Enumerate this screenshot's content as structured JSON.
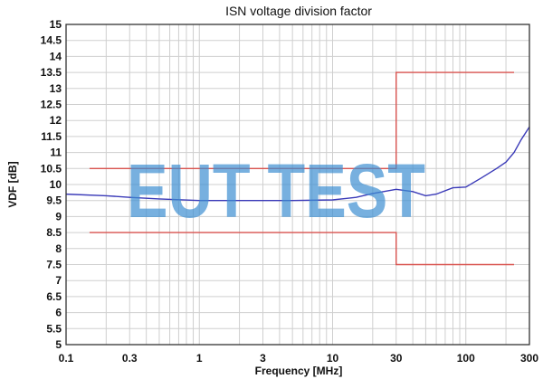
{
  "chart_data": {
    "type": "line",
    "title": "ISN voltage division factor",
    "xlabel": "Frequency [MHz]",
    "ylabel": "VDF [dB]",
    "xscale": "log",
    "xlim": [
      0.1,
      300
    ],
    "ylim": [
      5,
      15
    ],
    "grid": true,
    "xticks": [
      0.1,
      0.3,
      1,
      3,
      10,
      30,
      100,
      300
    ],
    "xtick_labels": [
      "0.1",
      "0.3",
      "1",
      "3",
      "10",
      "30",
      "100",
      "300"
    ],
    "yticks": [
      5,
      5.5,
      6,
      6.5,
      7,
      7.5,
      8,
      8.5,
      9,
      9.5,
      10,
      10.5,
      11,
      11.5,
      12,
      12.5,
      13,
      13.5,
      14,
      14.5,
      15
    ],
    "ytick_labels": [
      "5",
      "5.5",
      "6",
      "6.5",
      "7",
      "7.5",
      "8",
      "8.5",
      "9",
      "9.5",
      "10",
      "10.5",
      "11",
      "11.5",
      "12",
      "12.5",
      "13",
      "13.5",
      "14",
      "14.5",
      "15"
    ],
    "series": [
      {
        "role": "measured",
        "color": "#3a3ab8",
        "x": [
          0.1,
          0.2,
          0.3,
          0.5,
          1,
          2,
          5,
          10,
          15,
          20,
          30,
          40,
          50,
          60,
          80,
          100,
          130,
          170,
          200,
          230,
          260,
          300
        ],
        "y": [
          9.7,
          9.65,
          9.6,
          9.55,
          9.5,
          9.5,
          9.5,
          9.52,
          9.6,
          9.72,
          9.85,
          9.78,
          9.65,
          9.7,
          9.9,
          9.92,
          10.2,
          10.5,
          10.7,
          11.0,
          11.4,
          11.8
        ]
      },
      {
        "role": "upper-limit",
        "color": "#d9534f",
        "x": [
          0.15,
          30,
          30,
          230
        ],
        "y": [
          10.5,
          10.5,
          13.5,
          13.5
        ]
      },
      {
        "role": "lower-limit",
        "color": "#d9534f",
        "x": [
          0.15,
          30,
          30,
          230
        ],
        "y": [
          8.5,
          8.5,
          7.5,
          7.5
        ]
      }
    ]
  },
  "watermark": "EUT TEST",
  "colors": {
    "watermark": "#3d8fd1",
    "grid": "#cfcfcf"
  }
}
